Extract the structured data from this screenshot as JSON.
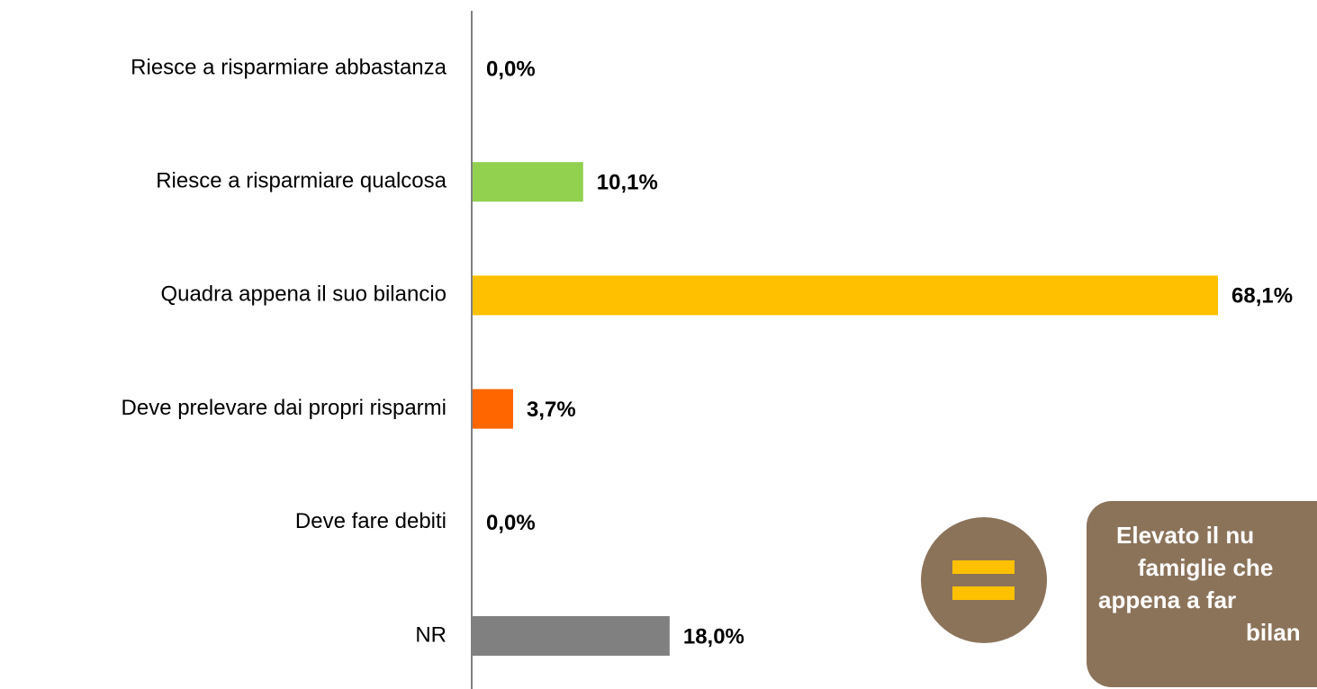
{
  "chart_data": {
    "type": "hbar",
    "categories": [
      "Riesce a risparmiare abbastanza",
      "Riesce a risparmiare qualcosa",
      "Quadra appena il suo bilancio",
      "Deve prelevare dai propri risparmi",
      "Deve fare debiti",
      "NR"
    ],
    "values": [
      0.0,
      10.1,
      68.1,
      3.7,
      0.0,
      18.0
    ],
    "value_labels": [
      "0,0%",
      "10,1%",
      "68,1%",
      "3,7%",
      "0,0%",
      "18,0%"
    ],
    "colors": [
      null,
      "#92d050",
      "#ffc000",
      "#ff6600",
      null,
      "#808080"
    ],
    "annotation": [
      "Elevato il nu",
      "famiglie che",
      "appena a far",
      "bilan"
    ]
  }
}
